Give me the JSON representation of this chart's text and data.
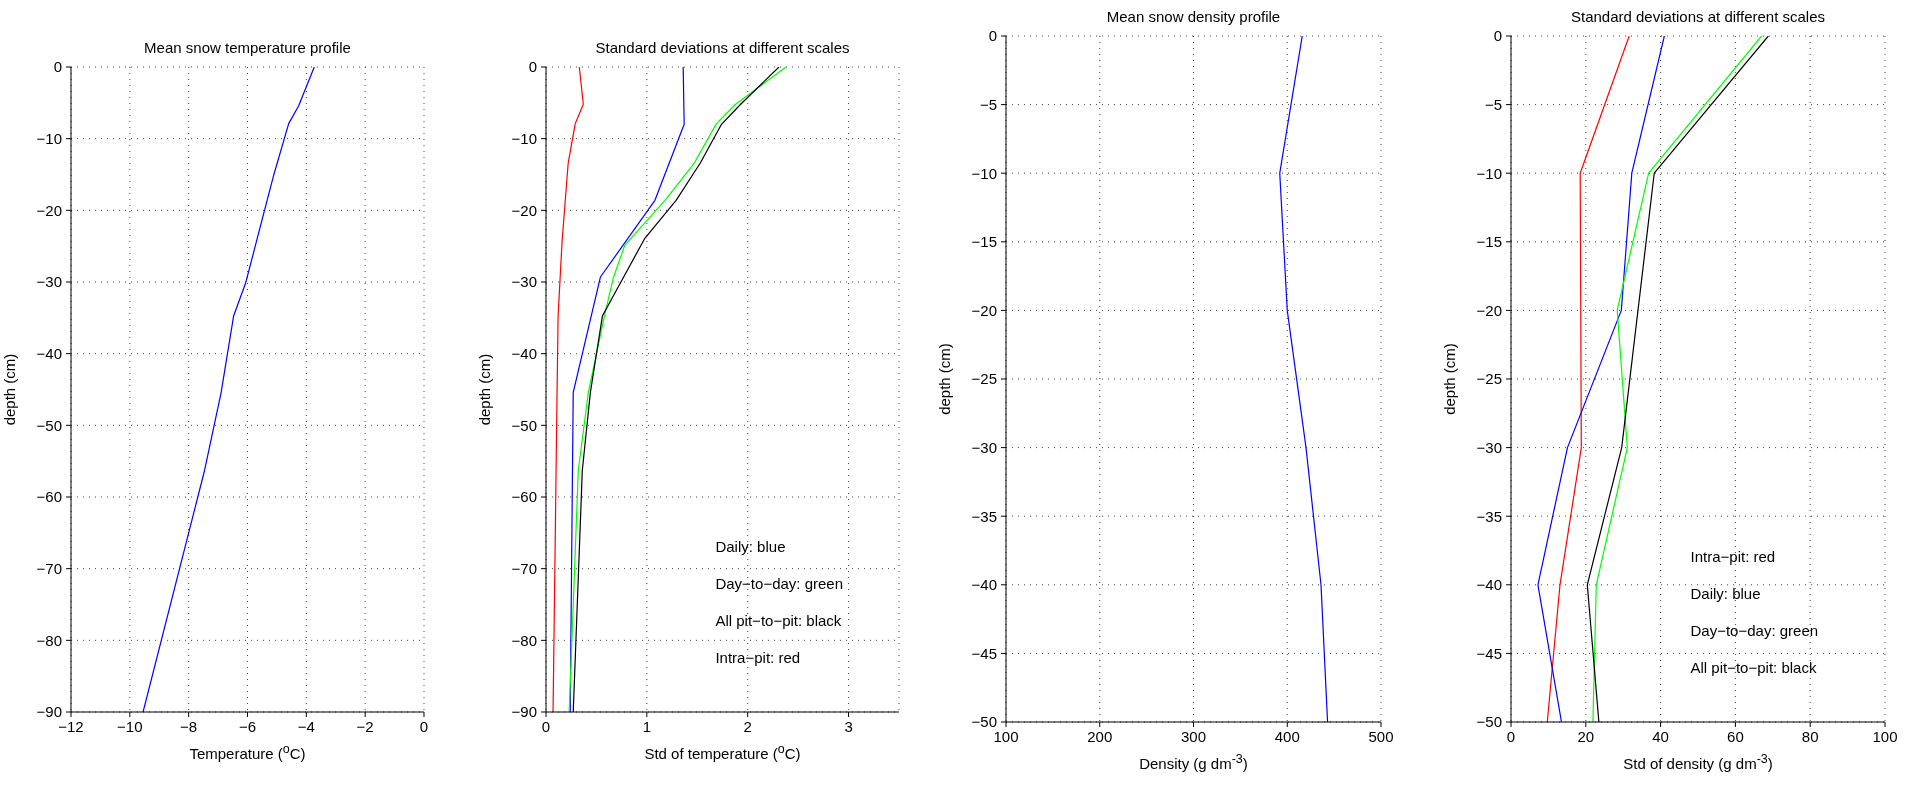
{
  "chart_data": [
    {
      "type": "line",
      "title": "Mean snow temperature profile",
      "xlabel": "Temperature ($^{o}$C)",
      "ylabel": "depth (cm)",
      "xlim": [
        -12,
        0
      ],
      "xticks": [
        -12,
        -10,
        -8,
        -6,
        -4,
        -2,
        0
      ],
      "ylim": [
        -90,
        0
      ],
      "yticks": [
        -90,
        -80,
        -70,
        -60,
        -50,
        -40,
        -30,
        -20,
        -10,
        0
      ],
      "grid": true,
      "series": [
        {
          "color": "#0000ff",
          "x": [
            -3.73,
            -4.26,
            -4.6,
            -5.11,
            -6.06,
            -6.47,
            -6.9,
            -7.46,
            -9.55
          ],
          "values": [
            0,
            -5.4,
            -7.9,
            -15.1,
            -30.1,
            -34.7,
            -45.5,
            -56.3,
            -90
          ]
        }
      ]
    },
    {
      "type": "line",
      "title": "Standard deviations at different scales",
      "xlabel": "Std of temperature ($^{o}$C)",
      "ylabel": "depth (cm)",
      "xlim": [
        0,
        3.5
      ],
      "xticks": [
        0,
        1,
        2,
        3
      ],
      "ylim": [
        -90,
        0
      ],
      "yticks": [
        -90,
        -80,
        -70,
        -60,
        -50,
        -40,
        -30,
        -20,
        -10,
        0
      ],
      "grid": true,
      "annotations": [
        "Daily: blue",
        "Day−to−day: green",
        "All pit−to−pit: black",
        "Intra−pit: red"
      ],
      "series": [
        {
          "color": "#ff0000",
          "x": [
            0.33,
            0.37,
            0.29,
            0.22,
            0.16,
            0.12,
            0.11,
            0.07
          ],
          "values": [
            0,
            -5.2,
            -7.9,
            -13.4,
            -24.2,
            -34.7,
            -45,
            -90
          ]
        },
        {
          "color": "#0000ff",
          "x": [
            1.36,
            1.37,
            1.08,
            0.54,
            0.27,
            0.24
          ],
          "values": [
            0,
            -8,
            -18.6,
            -29.3,
            -45.4,
            -90
          ]
        },
        {
          "color": "#00ff00",
          "x": [
            2.38,
            1.88,
            1.69,
            1.47,
            1.18,
            0.78,
            0.67,
            0.58,
            0.42,
            0.32,
            0.23
          ],
          "values": [
            0,
            -5.2,
            -7.9,
            -13.4,
            -18.6,
            -24.9,
            -29.3,
            -34.7,
            -45.4,
            -56.3,
            -90
          ]
        },
        {
          "color": "#000000",
          "x": [
            2.31,
            1.93,
            1.74,
            1.53,
            1.29,
            0.98,
            0.56,
            0.44,
            0.36,
            0.27
          ],
          "values": [
            0,
            -5.2,
            -8,
            -13.4,
            -18.6,
            -23.9,
            -34.7,
            -45.4,
            -56.3,
            -90
          ]
        }
      ]
    },
    {
      "type": "line",
      "title": "Mean snow density profile",
      "xlabel": "Density (g dm$^{-3}$)",
      "ylabel": "depth (cm)",
      "xlim": [
        100,
        500
      ],
      "xticks": [
        100,
        200,
        300,
        400,
        500
      ],
      "ylim": [
        -50,
        0
      ],
      "yticks": [
        -50,
        -45,
        -40,
        -35,
        -30,
        -25,
        -20,
        -15,
        -10,
        -5,
        0
      ],
      "grid": true,
      "series": [
        {
          "color": "#0000ff",
          "x": [
            416,
            392,
            400,
            420,
            436,
            443
          ],
          "values": [
            0,
            -10,
            -20,
            -30,
            -40,
            -50
          ]
        }
      ]
    },
    {
      "type": "line",
      "title": "Standard deviations at different scales",
      "xlabel": "Std of density (g dm$^{-3}$)",
      "ylabel": "depth (cm)",
      "xlim": [
        0,
        100
      ],
      "xticks": [
        0,
        20,
        40,
        60,
        80,
        100
      ],
      "ylim": [
        -50,
        0
      ],
      "yticks": [
        -50,
        -45,
        -40,
        -35,
        -30,
        -25,
        -20,
        -15,
        -10,
        -5,
        0
      ],
      "grid": true,
      "annotations": [
        "Intra−pit: red",
        "Daily: blue",
        "Day−to−day: green",
        "All pit−to−pit: black"
      ],
      "series": [
        {
          "color": "#ff0000",
          "x": [
            31.6,
            18.5,
            18.8,
            13.1,
            9.7
          ],
          "values": [
            0,
            -10,
            -30,
            -40,
            -50
          ]
        },
        {
          "color": "#0000ff",
          "x": [
            41,
            32.3,
            29.5,
            15.1,
            7.2,
            13.5
          ],
          "values": [
            0,
            -10,
            -20,
            -30,
            -40,
            -50
          ]
        },
        {
          "color": "#00ff00",
          "x": [
            67,
            36.8,
            28.4,
            31.1,
            22.8,
            21.9
          ],
          "values": [
            0,
            -10,
            -20,
            -30,
            -40,
            -50
          ]
        },
        {
          "color": "#000000",
          "x": [
            68.8,
            38.3,
            29.6,
            20.4,
            23.5
          ],
          "values": [
            0,
            -10,
            -30,
            -40,
            -50
          ]
        }
      ]
    }
  ]
}
